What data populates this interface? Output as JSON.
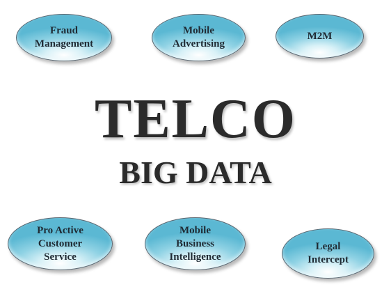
{
  "title": "TELCO",
  "subtitle": "BIG DATA",
  "bubbles": [
    {
      "label": "Fraud\nManagement"
    },
    {
      "label": "Mobile\nAdvertising"
    },
    {
      "label": "M2M"
    },
    {
      "label": "Pro Active\nCustomer\nService"
    },
    {
      "label": "Mobile\nBusiness\nIntelligence"
    },
    {
      "label": "Legal\nIntercept"
    }
  ],
  "colors": {
    "bubble_fill": "#8fd2e4",
    "bubble_highlight": "#ffffff",
    "bubble_border": "#5a6670",
    "text": "#2b2b2b"
  }
}
